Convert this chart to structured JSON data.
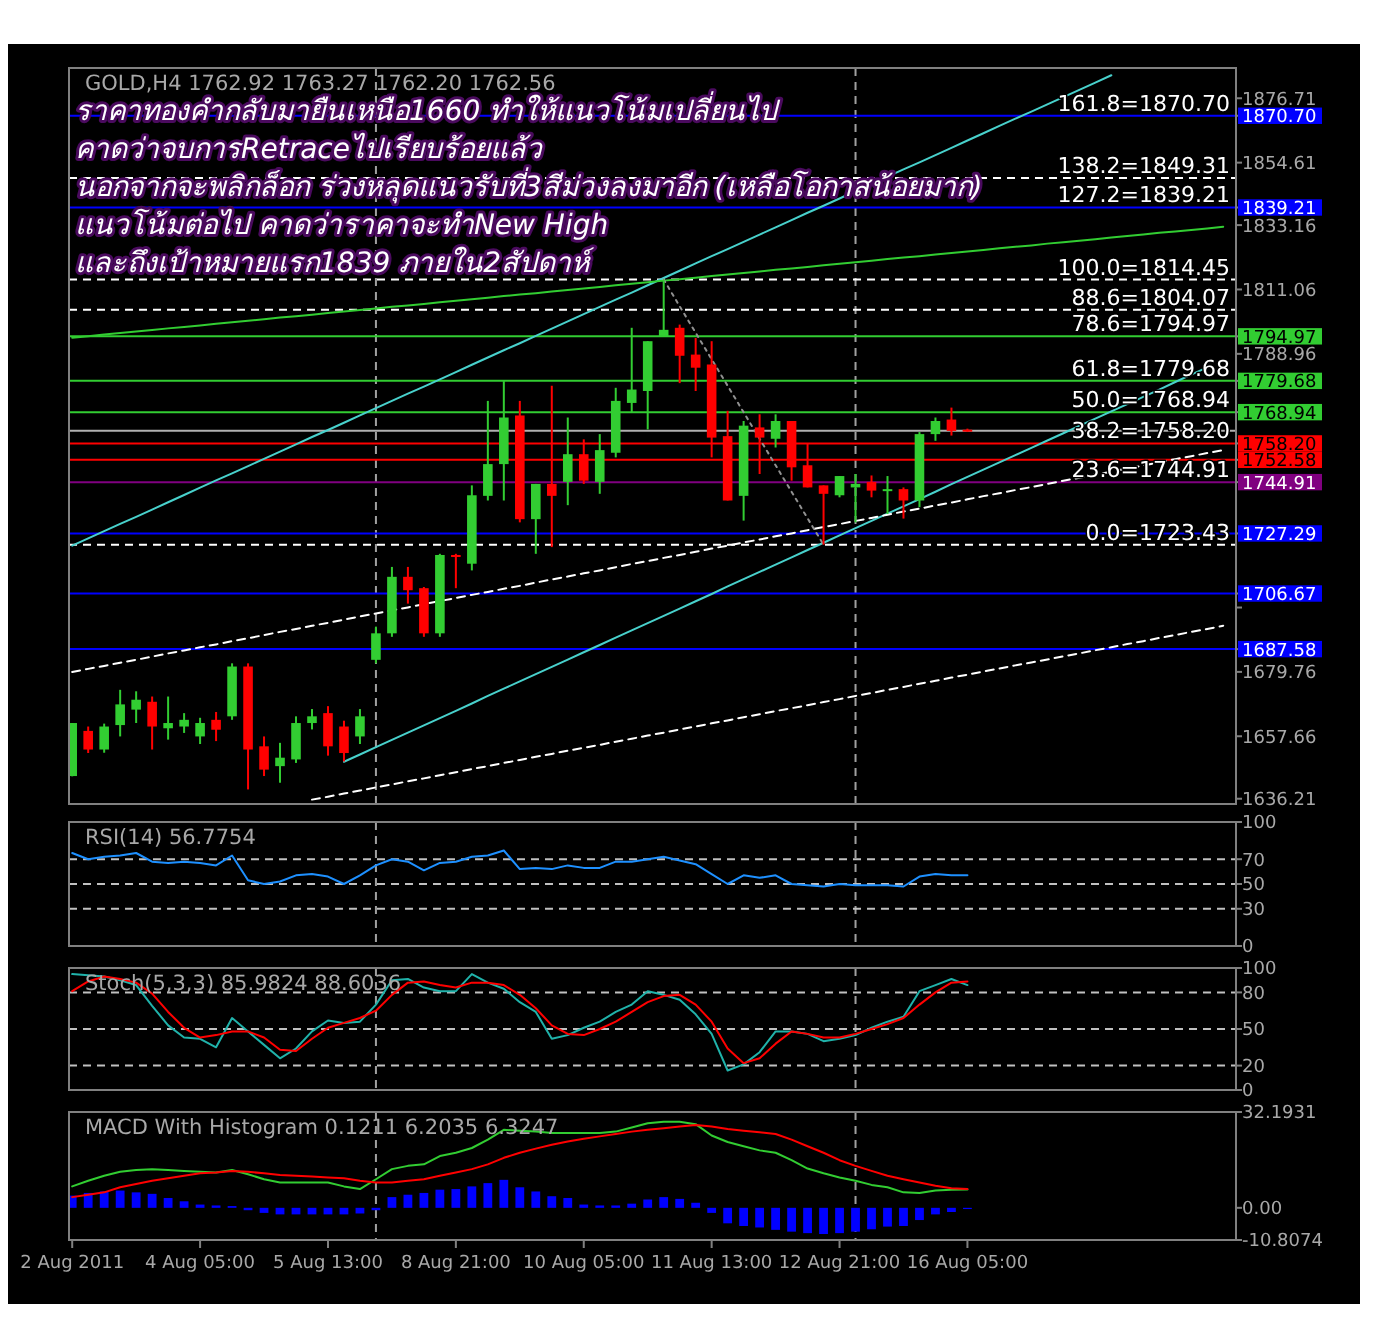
{
  "chart_data": [
    {
      "type": "candlestick",
      "title": "GOLD,H4 1762.92 1763.27 1762.20 1762.56",
      "categories": [
        null,
        null,
        null,
        null,
        null,
        null,
        null,
        null,
        null,
        null,
        null,
        null,
        null,
        null,
        null,
        null,
        null,
        null,
        null,
        null,
        null,
        null,
        null,
        null,
        null,
        null,
        null,
        null,
        null,
        null,
        null,
        null,
        null,
        null,
        null,
        null,
        null,
        null,
        null,
        null,
        null,
        null,
        null,
        null,
        null,
        null,
        null,
        null,
        null,
        null,
        null,
        null,
        null,
        null,
        null,
        null,
        null,
        null,
        null,
        null,
        null,
        null,
        null,
        null,
        null,
        null,
        null,
        null,
        null,
        null,
        null,
        null,
        null
      ],
      "ohlc": [
        [
          1644.0,
          1662.2,
          1643.9,
          1662.2
        ],
        [
          1659.5,
          1661.0,
          1651.9,
          1653.1
        ],
        [
          1653.1,
          1662.0,
          1652.0,
          1661.0
        ],
        [
          1661.5,
          1673.6,
          1657.6,
          1668.6
        ],
        [
          1666.8,
          1673.1,
          1662.2,
          1670.2
        ],
        [
          1669.5,
          1671.3,
          1653.1,
          1661.0
        ],
        [
          1660.4,
          1671.3,
          1656.5,
          1662.2
        ],
        [
          1661.0,
          1665.6,
          1658.8,
          1663.3
        ],
        [
          1657.6,
          1664.0,
          1655.0,
          1662.2
        ],
        [
          1663.3,
          1666.0,
          1656.0,
          1659.9
        ],
        [
          1664.5,
          1682.7,
          1663.3,
          1681.6
        ],
        [
          1681.6,
          1682.7,
          1639.4,
          1653.1
        ],
        [
          1654.2,
          1657.6,
          1644.0,
          1646.2
        ],
        [
          1647.4,
          1655.4,
          1641.7,
          1650.3
        ],
        [
          1649.7,
          1664.5,
          1648.5,
          1662.2
        ],
        [
          1662.2,
          1667.0,
          1660.0,
          1664.5
        ],
        [
          1665.6,
          1668.0,
          1651.0,
          1654.2
        ],
        [
          1661.0,
          1663.0,
          1649.0,
          1651.9
        ],
        [
          1657.6,
          1667.0,
          1655.0,
          1664.5
        ],
        [
          1683.9,
          1695.3,
          1682.7,
          1693.0
        ],
        [
          1693.0,
          1715.8,
          1691.8,
          1712.4
        ],
        [
          1712.4,
          1715.8,
          1703.2,
          1707.8
        ],
        [
          1708.5,
          1708.9,
          1691.8,
          1693.0
        ],
        [
          1693.0,
          1720.3,
          1691.8,
          1719.9
        ],
        [
          1719.9,
          1720.3,
          1708.5,
          1719.2
        ],
        [
          1716.9,
          1743.8,
          1714.6,
          1740.4
        ],
        [
          1740.2,
          1772.8,
          1738.6,
          1751.1
        ],
        [
          1751.1,
          1779.6,
          1738.6,
          1767.1
        ],
        [
          1767.8,
          1772.8,
          1731.1,
          1732.2
        ],
        [
          1732.2,
          1744.3,
          1720.3,
          1744.3
        ],
        [
          1744.3,
          1778.0,
          1722.6,
          1740.2
        ],
        [
          1745.0,
          1767.1,
          1737.0,
          1754.5
        ],
        [
          1754.5,
          1759.6,
          1744.3,
          1745.4
        ],
        [
          1745.0,
          1761.4,
          1740.9,
          1755.9
        ],
        [
          1755.0,
          1777.3,
          1753.4,
          1772.8
        ],
        [
          1772.1,
          1797.9,
          1768.9,
          1776.7
        ],
        [
          1776.2,
          1793.3,
          1763.0,
          1793.3
        ],
        [
          1795.1,
          1814.45,
          1795.1,
          1797.2
        ],
        [
          1797.9,
          1799.0,
          1778.9,
          1788.3
        ],
        [
          1788.7,
          1794.4,
          1776.2,
          1784.2
        ],
        [
          1785.3,
          1793.3,
          1753.4,
          1760.2
        ],
        [
          1760.7,
          1769.4,
          1738.6,
          1738.6
        ],
        [
          1740.2,
          1765.9,
          1731.7,
          1764.3
        ],
        [
          1763.7,
          1768.2,
          1747.7,
          1760.2
        ],
        [
          1759.8,
          1768.2,
          1756.8,
          1765.9
        ],
        [
          1765.9,
          1765.9,
          1745.4,
          1750.0
        ],
        [
          1750.7,
          1758.0,
          1743.1,
          1743.1
        ],
        [
          1743.8,
          1743.8,
          1723.43,
          1740.9
        ],
        [
          1740.4,
          1747.0,
          1739.7,
          1747.0
        ],
        [
          1743.1,
          1747.7,
          1731.1,
          1744.3
        ],
        [
          1745.0,
          1747.2,
          1739.7,
          1742.0
        ],
        [
          1742.0,
          1747.0,
          1734.0,
          1742.5
        ],
        [
          1742.5,
          1743.1,
          1732.4,
          1738.6
        ],
        [
          1738.6,
          1762.1,
          1736.3,
          1761.4
        ],
        [
          1761.4,
          1767.1,
          1759.1,
          1765.9
        ],
        [
          1766.4,
          1770.5,
          1760.9,
          1762.5
        ],
        [
          1762.92,
          1763.27,
          1762.2,
          1762.56
        ],
        null,
        null,
        null,
        null,
        null,
        null,
        null,
        null,
        null,
        null,
        null,
        null,
        null,
        null,
        null,
        null
      ],
      "colors": [
        "#32cd32",
        "#ff0000",
        "#32cd32",
        "#32cd32",
        "#32cd32",
        "#ff0000",
        "#32cd32",
        "#32cd32",
        "#32cd32",
        "#ff0000",
        "#32cd32",
        "#ff0000",
        "#ff0000",
        "#32cd32",
        "#32cd32",
        "#32cd32",
        "#ff0000",
        "#ff0000",
        "#32cd32",
        "#32cd32",
        "#32cd32",
        "#ff0000",
        "#ff0000",
        "#32cd32",
        "#ff0000",
        "#32cd32",
        "#32cd32",
        "#32cd32",
        "#ff0000",
        "#32cd32",
        "#ff0000",
        "#32cd32",
        "#ff0000",
        "#32cd32",
        "#32cd32",
        "#32cd32",
        "#32cd32",
        "#32cd32",
        "#ff0000",
        "#ff0000",
        "#ff0000",
        "#ff0000",
        "#32cd32",
        "#ff0000",
        "#32cd32",
        "#ff0000",
        "#ff0000",
        "#ff0000",
        "#32cd32",
        "#32cd32",
        "#ff0000",
        "#32cd32",
        "#ff0000",
        "#32cd32",
        "#32cd32",
        "#ff0000",
        "#ff0000",
        null,
        null,
        null,
        null,
        null,
        null,
        null,
        null,
        null,
        null,
        null,
        null,
        null,
        null,
        null,
        null
      ],
      "series": [
        {
          "type": "line",
          "color": "#48d1cc",
          "line_style": "solid",
          "values": [
            1723.1,
            1725.6,
            1728.1,
            1730.6,
            1733.0,
            1735.5,
            1738.0,
            1740.5,
            1743.0,
            1745.5,
            1747.9,
            1750.4,
            1752.9,
            1755.4,
            1757.9,
            1760.4,
            1762.8,
            1765.3,
            1767.8,
            1770.3,
            1772.8,
            1775.3,
            1777.7,
            1780.2,
            1782.7,
            1785.2,
            1787.7,
            1790.2,
            1792.6,
            1795.1,
            1797.6,
            1800.1,
            1802.6,
            1805.1,
            1807.6,
            1810.0,
            1812.5,
            1815.0,
            1817.5,
            1820.0,
            1822.5,
            1824.9,
            1827.4,
            1829.9,
            1832.4,
            1834.9,
            1837.4,
            1839.8,
            1842.3,
            1844.8,
            null,
            1849.8,
            1852.3,
            1854.7,
            1857.2,
            1859.7,
            1862.2,
            1864.7,
            1867.2,
            1869.7,
            1872.1,
            1874.6,
            1877.1,
            1879.6,
            1882.1,
            1884.6,
            null,
            null,
            null,
            null,
            null,
            null,
            null
          ]
        },
        {
          "type": "line",
          "color": "#48d1cc",
          "line_style": "solid",
          "values": [
            null,
            null,
            null,
            null,
            null,
            null,
            null,
            null,
            null,
            null,
            null,
            null,
            null,
            null,
            null,
            null,
            null,
            1648.9,
            1651.4,
            1653.9,
            1656.4,
            1658.9,
            1661.4,
            1663.9,
            1666.4,
            1668.9,
            1671.5,
            1674.0,
            1676.5,
            1679.0,
            1681.5,
            1684.0,
            1686.5,
            1689.0,
            1691.5,
            1694.0,
            1696.5,
            1699.0,
            1701.5,
            1704.0,
            1706.5,
            1709.1,
            1711.6,
            1714.1,
            1716.6,
            1719.1,
            1721.6,
            1724.1,
            1726.6,
            1729.1,
            1731.6,
            1734.1,
            1736.6,
            1739.1,
            1741.6,
            1744.2,
            1746.7,
            1749.2,
            1751.7,
            1754.2,
            1756.7,
            1759.2,
            1761.7,
            1764.2,
            1766.7,
            1769.2,
            1771.7,
            1774.2,
            1776.7,
            1779.3,
            1781.8,
            1784.3,
            null
          ]
        },
        {
          "type": "line",
          "color": "#32cd32",
          "line_style": "solid",
          "values": [
            1794.5,
            1795.0,
            1795.6,
            1796.1,
            1796.6,
            1797.1,
            1797.7,
            1798.2,
            1798.7,
            1799.3,
            1799.8,
            1800.3,
            1800.8,
            1801.4,
            1801.9,
            1802.4,
            1803.0,
            1803.5,
            1804.0,
            1804.5,
            1805.1,
            1805.6,
            1806.1,
            1806.7,
            1807.2,
            1807.7,
            1808.2,
            1808.8,
            1809.3,
            1809.8,
            1810.4,
            1810.9,
            1811.4,
            1811.9,
            1812.5,
            1813.0,
            1813.5,
            1814.1,
            1814.6,
            1815.1,
            1815.7,
            1816.2,
            1816.7,
            1817.2,
            1817.8,
            1818.3,
            1818.8,
            1819.4,
            1819.9,
            1820.4,
            1820.9,
            1821.5,
            1822.0,
            1822.5,
            1823.1,
            1823.6,
            1824.1,
            1824.6,
            1825.2,
            1825.7,
            1826.2,
            1826.8,
            1827.3,
            1827.8,
            1828.3,
            1828.9,
            1829.4,
            1829.9,
            1830.5,
            1831.0,
            1831.5,
            1832.0,
            1832.6
          ]
        },
        {
          "type": "line",
          "color": "#ffffff",
          "line_style": "dashed",
          "values": [
            1679.7,
            1680.8,
            1681.8,
            1682.9,
            1683.9,
            1685.0,
            1686.1,
            1687.1,
            1688.2,
            1689.2,
            1690.3,
            1691.3,
            1692.4,
            1693.5,
            1694.5,
            1695.6,
            1696.6,
            1697.7,
            1698.8,
            1699.8,
            1700.9,
            1701.9,
            1703.0,
            1704.1,
            1705.1,
            1706.2,
            1707.2,
            1708.3,
            1709.3,
            1710.4,
            1711.5,
            1712.5,
            1713.6,
            1714.6,
            1715.7,
            1716.8,
            1717.8,
            1718.9,
            1719.9,
            1721.0,
            1722.1,
            1723.1,
            1724.2,
            1725.2,
            1726.3,
            1727.3,
            1728.4,
            1729.5,
            1730.5,
            1731.6,
            1732.6,
            1733.7,
            1734.8,
            1735.8,
            1736.9,
            1737.9,
            1739.0,
            1740.1,
            1741.1,
            1742.2,
            1743.2,
            1744.3,
            1745.4,
            1746.4,
            1747.5,
            1748.5,
            1749.6,
            1750.6,
            1751.7,
            1752.8,
            1753.8,
            1754.9,
            1755.9
          ]
        },
        {
          "type": "line",
          "color": "#ffffff",
          "line_style": "dashed",
          "values": [
            null,
            null,
            null,
            null,
            null,
            null,
            null,
            null,
            null,
            null,
            null,
            null,
            null,
            null,
            null,
            1635.9,
            1636.9,
            1638.0,
            1639.0,
            1640.1,
            1641.1,
            1642.2,
            1643.2,
            1644.3,
            1645.3,
            1646.4,
            1647.4,
            1648.5,
            1649.5,
            1650.6,
            1651.6,
            1652.7,
            1653.7,
            1654.7,
            1655.8,
            1656.8,
            1657.9,
            1658.9,
            1660.0,
            1661.0,
            1662.1,
            1663.1,
            1664.2,
            1665.2,
            1666.3,
            1667.3,
            1668.3,
            1669.4,
            1670.4,
            1671.5,
            1672.5,
            1673.6,
            1674.6,
            1675.7,
            1676.7,
            1677.8,
            1678.8,
            1679.9,
            1680.9,
            1682.0,
            1683.0,
            1684.0,
            1685.1,
            1686.1,
            1687.2,
            1688.2,
            1689.3,
            1690.3,
            1691.4,
            1692.4,
            1693.5,
            1694.5,
            1695.6
          ]
        },
        {
          "type": "line",
          "color": "#909090",
          "line_style": "dotted",
          "values": [
            null,
            null,
            null,
            null,
            null,
            null,
            null,
            null,
            null,
            null,
            null,
            null,
            null,
            null,
            null,
            null,
            null,
            null,
            null,
            null,
            null,
            null,
            null,
            null,
            null,
            null,
            null,
            null,
            null,
            null,
            null,
            null,
            null,
            null,
            null,
            null,
            null,
            1814.5,
            1805.3,
            1796.2,
            1787.1,
            1778.0,
            1768.9,
            1759.8,
            1750.7,
            1741.6,
            1732.5,
            1723.4,
            null,
            null,
            null,
            null,
            null,
            null,
            null,
            null,
            null,
            null,
            null,
            null,
            null,
            null,
            null,
            null,
            null,
            null,
            null,
            null,
            null,
            null,
            null,
            null,
            null
          ]
        }
      ],
      "ylim": [
        1634.4,
        1887.1
      ],
      "yticks": [
        1876.71,
        {
          "value": 1870.7,
          "label": "1870.70"
        },
        1854.61,
        {
          "value": 1839.21,
          "label": "1839.21"
        },
        1833.16,
        1811.06,
        {
          "value": 1794.97,
          "label": "1794.97"
        },
        1788.96,
        {
          "value": 1779.68,
          "label": "1779.68"
        },
        {
          "value": 1768.94,
          "label": "1768.94"
        },
        {
          "value": 1758.2,
          "label": "1758.20"
        },
        {
          "value": 1752.58,
          "label": "1752.58"
        },
        {
          "value": 1744.91,
          "label": "1744.91"
        },
        {
          "value": 1727.29,
          "label": "1727.29"
        },
        {
          "value": 1706.67,
          "label": "1706.67"
        },
        {
          "value": 1701.86,
          "label": null
        },
        {
          "value": 1687.58,
          "label": "1687.58"
        },
        1679.76,
        1657.66,
        1636.21
      ],
      "ref_lines": [
        {
          "axis": "y",
          "value": 1870.7,
          "label": "161.8=1870.70",
          "color": "#0000ff",
          "line_style": "solid"
        },
        {
          "axis": "y",
          "value": 1849.31,
          "label": "138.2=1849.31",
          "color": "#ffffff",
          "line_style": "dashed"
        },
        {
          "axis": "y",
          "value": 1839.21,
          "label": "127.2=1839.21",
          "color": "#0000ff",
          "line_style": "solid"
        },
        {
          "axis": "y",
          "value": 1814.45,
          "label": "100.0=1814.45",
          "color": "#ffffff",
          "line_style": "dashed"
        },
        {
          "axis": "y",
          "value": 1804.07,
          "label": "88.6=1804.07",
          "color": "#ffffff",
          "line_style": "dashed"
        },
        {
          "axis": "y",
          "value": 1794.97,
          "label": "78.6=1794.97",
          "color": "#32cd32",
          "line_style": "solid"
        },
        {
          "axis": "y",
          "value": 1779.68,
          "label": "61.8=1779.68",
          "color": "#32cd32",
          "line_style": "solid"
        },
        {
          "axis": "y",
          "value": 1768.94,
          "label": "50.0=1768.94",
          "color": "#32cd32",
          "line_style": "solid"
        },
        {
          "axis": "y",
          "value": 1762.56,
          "color": "#b0b0b0",
          "line_style": "solid"
        },
        {
          "axis": "y",
          "value": 1758.2,
          "label": "38.2=1758.20",
          "color": "#ff0000",
          "line_style": "solid"
        },
        {
          "axis": "y",
          "value": 1752.58,
          "color": "#ff0000",
          "line_style": "solid"
        },
        {
          "axis": "y",
          "value": 1744.91,
          "label": "23.6=1744.91",
          "color": "#800080",
          "line_style": "solid"
        },
        {
          "axis": "y",
          "value": 1727.29,
          "color": "#0000ff",
          "line_style": "solid"
        },
        {
          "axis": "y",
          "value": 1723.43,
          "label": "0.0=1723.43",
          "color": "#ffffff",
          "line_style": "dashed"
        },
        {
          "axis": "y",
          "value": 1706.67,
          "color": "#0000ff",
          "line_style": "solid"
        },
        {
          "axis": "y",
          "value": 1687.58,
          "color": "#0000ff",
          "line_style": "solid"
        }
      ],
      "annotations": [
        "ราคาทองคำกลับมายืนเหนือ1660 ทำให้แนวโน้มเปลี่ยนไป",
        "คาดว่าจบการRetraceไปเรียบร้อยแล้ว",
        "นอกจากจะพลิกล็อก ร่วงหลุดแนวรับที่3สีม่วงลงมาอีก (เหลือโอกาสน้อยมาก)",
        "แนวโน้มต่อไป คาดว่าราคาจะทำNew High",
        "และถึงเป้าหมายแรก1839 ภายใน2สัปดาห์"
      ]
    },
    {
      "type": "line",
      "title": "RSI(14) 56.7754",
      "categories": [
        null,
        null,
        null,
        null,
        null,
        null,
        null,
        null,
        null,
        null,
        null,
        null,
        null,
        null,
        null,
        null,
        null,
        null,
        null,
        null,
        null,
        null,
        null,
        null,
        null,
        null,
        null,
        null,
        null,
        null,
        null,
        null,
        null,
        null,
        null,
        null,
        null,
        null,
        null,
        null,
        null,
        null,
        null,
        null,
        null,
        null,
        null,
        null,
        null,
        null,
        null,
        null,
        null,
        null,
        null,
        null,
        null,
        null,
        null,
        null,
        null,
        null,
        null,
        null,
        null,
        null,
        null,
        null,
        null,
        null,
        null,
        null,
        null
      ],
      "series": [
        {
          "color": "#1e90ff",
          "values": [
            75,
            70,
            72,
            73,
            75,
            68,
            67,
            68,
            67,
            65,
            73,
            53,
            50,
            52,
            57,
            58,
            56,
            50,
            57,
            65,
            70,
            68,
            61,
            67,
            68,
            72,
            73,
            77,
            62,
            63,
            62,
            65,
            63,
            63,
            68,
            68,
            70,
            72,
            69,
            66,
            58,
            50,
            57,
            55,
            57,
            50,
            49,
            48,
            50,
            49,
            49,
            49,
            48,
            56,
            58,
            57,
            57,
            null,
            null,
            null,
            null,
            null,
            null,
            null,
            null,
            null,
            null,
            null,
            null,
            null,
            null,
            null,
            null
          ]
        }
      ],
      "ylim": [
        0,
        100
      ],
      "yticks": [
        0,
        30,
        50,
        70,
        100
      ],
      "ref_lines": [
        {
          "axis": "y",
          "value": 70,
          "color": "#c0c0c0",
          "line_style": "dashed"
        },
        {
          "axis": "y",
          "value": 50,
          "color": "#c0c0c0",
          "line_style": "dashed"
        },
        {
          "axis": "y",
          "value": 30,
          "color": "#c0c0c0",
          "line_style": "dashed"
        }
      ]
    },
    {
      "type": "line",
      "title": "Stoch(5,3,3) 85.9824 88.6036",
      "categories": [
        null,
        null,
        null,
        null,
        null,
        null,
        null,
        null,
        null,
        null,
        null,
        null,
        null,
        null,
        null,
        null,
        null,
        null,
        null,
        null,
        null,
        null,
        null,
        null,
        null,
        null,
        null,
        null,
        null,
        null,
        null,
        null,
        null,
        null,
        null,
        null,
        null,
        null,
        null,
        null,
        null,
        null,
        null,
        null,
        null,
        null,
        null,
        null,
        null,
        null,
        null,
        null,
        null,
        null,
        null,
        null,
        null,
        null,
        null,
        null,
        null,
        null,
        null,
        null,
        null,
        null,
        null,
        null,
        null,
        null,
        null,
        null,
        null
      ],
      "series": [
        {
          "color": "#20b2aa",
          "values": [
            95,
            94,
            93,
            90,
            86,
            69,
            53,
            43,
            42,
            35,
            59,
            48,
            37,
            26,
            34,
            48,
            57,
            55,
            56,
            70,
            90,
            91,
            84,
            81,
            81,
            95,
            88,
            83,
            72,
            64,
            42,
            45,
            51,
            56,
            64,
            70,
            81,
            78,
            74,
            62,
            46,
            16,
            21,
            31,
            48,
            48,
            46,
            40,
            42,
            45,
            51,
            56,
            60,
            81,
            86,
            91,
            86,
            null,
            null,
            null,
            null,
            null,
            null,
            null,
            null,
            null,
            null,
            null,
            null,
            null,
            null,
            null,
            null
          ]
        },
        {
          "color": "#ff0000",
          "values": [
            81,
            89,
            93,
            91,
            88,
            79,
            64,
            51,
            43,
            45,
            48,
            48,
            43,
            33,
            32,
            42,
            51,
            55,
            59,
            65,
            78,
            88,
            89,
            86,
            84,
            88,
            88,
            86,
            78,
            67,
            53,
            46,
            45,
            50,
            56,
            64,
            72,
            77,
            78,
            70,
            56,
            34,
            22,
            26,
            38,
            48,
            46,
            43,
            43,
            46,
            50,
            54,
            59,
            70,
            80,
            88,
            89,
            null,
            null,
            null,
            null,
            null,
            null,
            null,
            null,
            null,
            null,
            null,
            null,
            null,
            null,
            null,
            null
          ]
        }
      ],
      "ylim": [
        0,
        100
      ],
      "yticks": [
        0,
        20,
        50,
        80,
        100
      ],
      "ref_lines": [
        {
          "axis": "y",
          "value": 80,
          "color": "#c0c0c0",
          "line_style": "dashed"
        },
        {
          "axis": "y",
          "value": 50,
          "color": "#c0c0c0",
          "line_style": "dashed"
        },
        {
          "axis": "y",
          "value": 20,
          "color": "#c0c0c0",
          "line_style": "dashed"
        }
      ]
    },
    {
      "type": "line",
      "title": "MACD With Histogram 0.1211 6.2035 6.3247",
      "categories": [
        "2 Aug 2011",
        null,
        null,
        null,
        null,
        null,
        null,
        null,
        "4 Aug 05:00",
        null,
        null,
        null,
        null,
        null,
        null,
        null,
        "5 Aug 13:00",
        null,
        null,
        null,
        null,
        null,
        null,
        null,
        "8 Aug 21:00",
        null,
        null,
        null,
        null,
        null,
        null,
        null,
        "10 Aug 05:00",
        null,
        null,
        null,
        null,
        null,
        null,
        null,
        "11 Aug 13:00",
        null,
        null,
        null,
        null,
        null,
        null,
        null,
        "12 Aug 21:00",
        null,
        null,
        null,
        null,
        null,
        null,
        null,
        "16 Aug 05:00",
        null,
        null,
        null,
        null,
        null,
        null,
        null,
        null,
        null,
        null,
        null,
        null,
        null,
        null,
        null,
        null
      ],
      "series": [
        {
          "type": "bar",
          "color": "#0000ff",
          "values": [
            4.1,
            5.0,
            5.5,
            5.8,
            5.2,
            4.7,
            3.3,
            2.2,
            1.1,
            0.8,
            0.6,
            -0.8,
            -1.7,
            -2.2,
            -2.2,
            -2.2,
            -2.2,
            -2.2,
            -1.9,
            -0.8,
            3.6,
            4.4,
            5.0,
            6.1,
            6.3,
            7.2,
            8.3,
            9.4,
            6.9,
            5.5,
            3.9,
            3.3,
            1.1,
            0.8,
            0.8,
            1.4,
            2.8,
            3.6,
            3.0,
            1.7,
            -1.7,
            -5.2,
            -6.1,
            -6.6,
            -7.4,
            -8.0,
            -8.5,
            -8.8,
            -8.5,
            -8.0,
            -7.2,
            -6.3,
            -6.1,
            -4.1,
            -2.2,
            -1.4,
            -0.1,
            null,
            null,
            null,
            null,
            null,
            null,
            null,
            null,
            null,
            null,
            null,
            null,
            null,
            null,
            null,
            null
          ]
        },
        {
          "color": "#32cd32",
          "values": [
            7.2,
            9.1,
            10.8,
            12.1,
            12.7,
            13.0,
            12.7,
            12.4,
            12.1,
            11.9,
            12.7,
            11.3,
            9.6,
            8.5,
            8.5,
            8.5,
            8.5,
            7.2,
            6.3,
            9.6,
            13.0,
            14.1,
            14.6,
            17.4,
            18.5,
            20.1,
            22.9,
            26.2,
            25.9,
            25.6,
            25.1,
            25.1,
            25.1,
            25.1,
            25.6,
            27.0,
            28.4,
            28.9,
            28.9,
            28.1,
            24.3,
            22.1,
            20.7,
            19.3,
            18.5,
            16.0,
            13.2,
            11.6,
            10.2,
            9.1,
            7.7,
            6.9,
            5.2,
            5.0,
            5.8,
            6.1,
            6.2,
            null,
            null,
            null,
            null,
            null,
            null,
            null,
            null,
            null,
            null,
            null,
            null,
            null,
            null,
            null,
            null
          ]
        },
        {
          "color": "#ff0000",
          "values": [
            3.6,
            4.4,
            5.2,
            6.9,
            8.0,
            9.1,
            9.9,
            10.8,
            11.6,
            11.9,
            12.4,
            12.1,
            11.6,
            11.0,
            10.8,
            10.5,
            10.2,
            9.9,
            9.1,
            8.5,
            8.5,
            9.1,
            9.6,
            10.8,
            11.9,
            13.0,
            14.6,
            16.8,
            18.5,
            19.9,
            21.2,
            22.3,
            23.2,
            24.0,
            24.8,
            25.6,
            26.2,
            26.7,
            27.3,
            27.8,
            27.3,
            26.5,
            25.9,
            25.4,
            24.8,
            22.9,
            20.7,
            18.5,
            16.0,
            14.1,
            12.4,
            10.8,
            9.6,
            8.5,
            7.4,
            6.6,
            6.3,
            null,
            null,
            null,
            null,
            null,
            null,
            null,
            null,
            null,
            null,
            null,
            null,
            null,
            null,
            null,
            null
          ]
        }
      ],
      "ylim": [
        -10.8074,
        32.1931
      ],
      "yticks": [
        32.1931,
        {
          "value": 0,
          "label": "0.00"
        },
        -10.8074
      ]
    }
  ]
}
